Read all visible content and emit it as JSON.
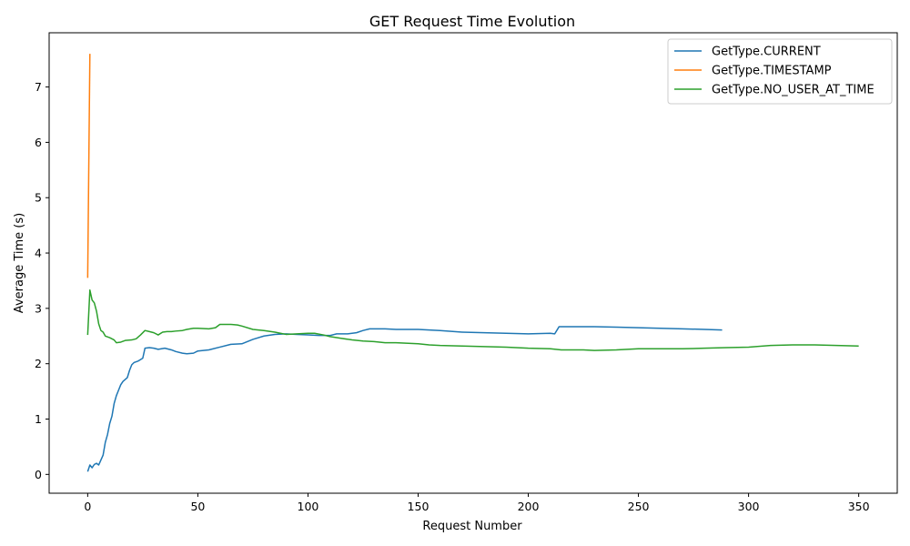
{
  "chart_data": {
    "type": "line",
    "title": "GET Request Time Evolution",
    "xlabel": "Request Number",
    "ylabel": "Average Time (s)",
    "xlim": [
      -17.5,
      367.5
    ],
    "ylim": [
      -0.34,
      7.98
    ],
    "xticks": [
      0,
      50,
      100,
      150,
      200,
      250,
      300,
      350
    ],
    "yticks": [
      0,
      1,
      2,
      3,
      4,
      5,
      6,
      7
    ],
    "grid": false,
    "legend_position": "top-right",
    "series": [
      {
        "name": "GetType.CURRENT",
        "color": "#1f77b4",
        "points": [
          [
            0,
            0.05
          ],
          [
            1,
            0.17
          ],
          [
            2,
            0.12
          ],
          [
            3,
            0.18
          ],
          [
            4,
            0.2
          ],
          [
            5,
            0.17
          ],
          [
            7,
            0.35
          ],
          [
            8,
            0.58
          ],
          [
            9,
            0.72
          ],
          [
            10,
            0.92
          ],
          [
            11,
            1.05
          ],
          [
            12,
            1.28
          ],
          [
            13,
            1.42
          ],
          [
            14,
            1.52
          ],
          [
            15,
            1.62
          ],
          [
            16,
            1.68
          ],
          [
            18,
            1.75
          ],
          [
            19,
            1.88
          ],
          [
            20,
            1.98
          ],
          [
            21,
            2.02
          ],
          [
            23,
            2.05
          ],
          [
            25,
            2.1
          ],
          [
            26,
            2.28
          ],
          [
            28,
            2.29
          ],
          [
            30,
            2.28
          ],
          [
            32,
            2.26
          ],
          [
            35,
            2.28
          ],
          [
            38,
            2.25
          ],
          [
            40,
            2.22
          ],
          [
            43,
            2.19
          ],
          [
            45,
            2.18
          ],
          [
            48,
            2.19
          ],
          [
            50,
            2.23
          ],
          [
            55,
            2.25
          ],
          [
            60,
            2.3
          ],
          [
            65,
            2.35
          ],
          [
            70,
            2.36
          ],
          [
            75,
            2.44
          ],
          [
            80,
            2.5
          ],
          [
            85,
            2.53
          ],
          [
            90,
            2.54
          ],
          [
            95,
            2.53
          ],
          [
            100,
            2.52
          ],
          [
            105,
            2.51
          ],
          [
            110,
            2.51
          ],
          [
            113,
            2.54
          ],
          [
            118,
            2.54
          ],
          [
            122,
            2.56
          ],
          [
            125,
            2.6
          ],
          [
            128,
            2.63
          ],
          [
            135,
            2.63
          ],
          [
            140,
            2.62
          ],
          [
            150,
            2.62
          ],
          [
            160,
            2.6
          ],
          [
            170,
            2.57
          ],
          [
            180,
            2.56
          ],
          [
            190,
            2.55
          ],
          [
            200,
            2.54
          ],
          [
            210,
            2.55
          ],
          [
            212,
            2.54
          ],
          [
            214,
            2.67
          ],
          [
            230,
            2.67
          ],
          [
            240,
            2.66
          ],
          [
            250,
            2.65
          ],
          [
            260,
            2.64
          ],
          [
            270,
            2.63
          ],
          [
            280,
            2.62
          ],
          [
            288,
            2.61
          ]
        ]
      },
      {
        "name": "GetType.TIMESTAMP",
        "color": "#ff7f0e",
        "points": [
          [
            0,
            3.55
          ],
          [
            1,
            7.6
          ]
        ]
      },
      {
        "name": "GetType.NO_USER_AT_TIME",
        "color": "#2ca02c",
        "points": [
          [
            0,
            2.52
          ],
          [
            1,
            3.33
          ],
          [
            2,
            3.15
          ],
          [
            3,
            3.1
          ],
          [
            4,
            2.95
          ],
          [
            5,
            2.72
          ],
          [
            6,
            2.6
          ],
          [
            7,
            2.57
          ],
          [
            8,
            2.5
          ],
          [
            10,
            2.47
          ],
          [
            12,
            2.43
          ],
          [
            13,
            2.38
          ],
          [
            15,
            2.39
          ],
          [
            17,
            2.42
          ],
          [
            20,
            2.43
          ],
          [
            22,
            2.45
          ],
          [
            24,
            2.52
          ],
          [
            26,
            2.6
          ],
          [
            28,
            2.58
          ],
          [
            30,
            2.56
          ],
          [
            32,
            2.52
          ],
          [
            34,
            2.57
          ],
          [
            36,
            2.58
          ],
          [
            38,
            2.58
          ],
          [
            40,
            2.59
          ],
          [
            43,
            2.6
          ],
          [
            45,
            2.62
          ],
          [
            48,
            2.64
          ],
          [
            50,
            2.64
          ],
          [
            55,
            2.63
          ],
          [
            58,
            2.65
          ],
          [
            60,
            2.71
          ],
          [
            65,
            2.71
          ],
          [
            68,
            2.7
          ],
          [
            70,
            2.68
          ],
          [
            75,
            2.62
          ],
          [
            80,
            2.6
          ],
          [
            85,
            2.57
          ],
          [
            90,
            2.53
          ],
          [
            95,
            2.54
          ],
          [
            100,
            2.55
          ],
          [
            103,
            2.55
          ],
          [
            107,
            2.52
          ],
          [
            110,
            2.49
          ],
          [
            115,
            2.46
          ],
          [
            120,
            2.43
          ],
          [
            125,
            2.41
          ],
          [
            130,
            2.4
          ],
          [
            135,
            2.38
          ],
          [
            140,
            2.38
          ],
          [
            150,
            2.36
          ],
          [
            155,
            2.34
          ],
          [
            160,
            2.33
          ],
          [
            170,
            2.32
          ],
          [
            180,
            2.31
          ],
          [
            190,
            2.3
          ],
          [
            200,
            2.28
          ],
          [
            210,
            2.27
          ],
          [
            215,
            2.25
          ],
          [
            225,
            2.25
          ],
          [
            230,
            2.24
          ],
          [
            240,
            2.25
          ],
          [
            250,
            2.27
          ],
          [
            260,
            2.27
          ],
          [
            270,
            2.27
          ],
          [
            280,
            2.28
          ],
          [
            290,
            2.29
          ],
          [
            300,
            2.3
          ],
          [
            310,
            2.33
          ],
          [
            320,
            2.34
          ],
          [
            330,
            2.34
          ],
          [
            340,
            2.33
          ],
          [
            350,
            2.32
          ]
        ]
      }
    ]
  }
}
